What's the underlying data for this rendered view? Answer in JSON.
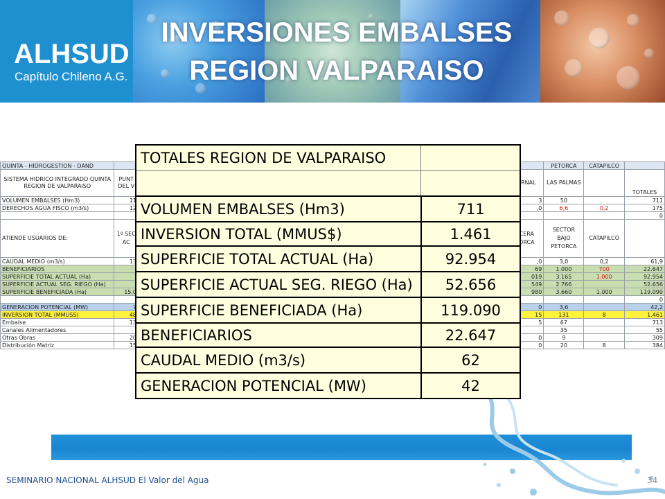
{
  "header": {
    "logo_main": "ALHSUD",
    "logo_sub": "Capítulo Chileno A.G.",
    "title_line1": "INVERSIONES EMBALSES",
    "title_line2": "REGION VALPARAISO"
  },
  "background_sheet": {
    "title": "QUINTA - HIDROGESTION - DAND",
    "col_petorca": "PETORCA",
    "col_catapilco": "CATAPILCO",
    "head_sistema": "SISTEMA HIDRICO INTEGRADO QUINTA REGION DE VALPARAISO",
    "head_punta": "PUNT DEL V",
    "head_ernal": "ERNAL",
    "head_las_palmas": "LAS PALMAS",
    "head_totales": "TOTALES",
    "rows": [
      {
        "label": "VOLUMEN EMBALSES (Hm3)",
        "c1": "11",
        "c3": "3",
        "c4": "50",
        "c5": "",
        "c6": "711"
      },
      {
        "label": "DERECHOS AGUA FISCO (m3/s)",
        "c1": "12",
        "c3": ",0",
        "c4": "6,6",
        "c5": "0,2",
        "c6": "175"
      },
      {
        "label": "",
        "c1": "",
        "c3": "",
        "c4": "",
        "c5": "",
        "c6": "0"
      }
    ],
    "atiende_label": "ATIENDE USUARIOS DE:",
    "atiende_c1": "1º SEC AC",
    "atiende_c3": "CERA ORCA",
    "atiende_c4": "SECTOR BAJO PETORCA",
    "atiende_c5": "CATAPILCO",
    "rows2": [
      {
        "label": "CAUDAL MEDIO (m3/s)",
        "c1": "13",
        "c3": ",0",
        "c4": "3,0",
        "c5": "0,2",
        "c6": "61,9",
        "style": ""
      },
      {
        "label": "BENEFICIARIOS",
        "c1": "",
        "c3": "69",
        "c4": "1.000",
        "c5": "700",
        "c6": "22.647",
        "style": "green"
      },
      {
        "label": "SUPERFICIE TOTAL ACTUAL (Ha)",
        "c1": "",
        "c3": "019",
        "c4": "3.165",
        "c5": "1.000",
        "c6": "92.954",
        "style": "green"
      },
      {
        "label": "SUPERFICIE ACTUAL SEG. RIEGO (Ha)",
        "c1": "",
        "c3": "549",
        "c4": "2.766",
        "c5": "",
        "c6": "52.656",
        "style": "green"
      },
      {
        "label": "SUPERFICIE BENEFICIADA (Ha)",
        "c1": "15.0",
        "c3": "980",
        "c4": "3.660",
        "c5": "1.000",
        "c6": "119.090",
        "style": "green"
      },
      {
        "label": "",
        "c1": "",
        "c3": "",
        "c4": "",
        "c5": "",
        "c6": "0",
        "style": ""
      },
      {
        "label": "GENERACION POTENCIAL (MW)",
        "c1": "7",
        "c3": "0",
        "c4": "3,6",
        "c5": "",
        "c6": "42,2",
        "style": "blue"
      },
      {
        "label": "INVERSION TOTAL (MMUSS)",
        "c1": "48",
        "c3": "15",
        "c4": "131",
        "c5": "8",
        "c6": "1.461",
        "style": "yellow"
      },
      {
        "label": "Embalse",
        "c1": "13",
        "c3": "5",
        "c4": "67",
        "c5": "",
        "c6": "713",
        "style": ""
      },
      {
        "label": "Canales Alimentadores",
        "c1": "",
        "c3": "",
        "c4": "35",
        "c5": "",
        "c6": "55",
        "style": ""
      },
      {
        "label": "Otras Obras",
        "c1": "20",
        "c3": "0",
        "c4": "9",
        "c5": "",
        "c6": "309",
        "style": ""
      },
      {
        "label": "Distribución Matriz",
        "c1": "15",
        "c3": "0",
        "c4": "20",
        "c5": "8",
        "c6": "384",
        "style": ""
      }
    ]
  },
  "summary": {
    "title": "TOTALES REGION DE VALPARAISO",
    "rows": [
      {
        "label": "VOLUMEN EMBALSES (Hm3)",
        "value": "711"
      },
      {
        "label": "INVERSION TOTAL (MMUS$)",
        "value": "1.461"
      },
      {
        "label": "SUPERFICIE TOTAL ACTUAL (Ha)",
        "value": "92.954"
      },
      {
        "label": "SUPERFICIE ACTUAL SEG. RIEGO (Ha)",
        "value": "52.656"
      },
      {
        "label": "SUPERFICIE BENEFICIADA (Ha)",
        "value": "119.090"
      },
      {
        "label": "BENEFICIARIOS",
        "value": "22.647"
      },
      {
        "label": "CAUDAL MEDIO (m3/s)",
        "value": "62"
      },
      {
        "label": "GENERACION POTENCIAL (MW)",
        "value": "42"
      }
    ]
  },
  "footer": {
    "text": "SEMINARIO NACIONAL ALHSUD El Valor del Agua",
    "page": "34"
  },
  "colors": {
    "brand_blue": "#1e90d0",
    "summary_bg": "#ffffe0",
    "footer_text": "#1f4e8f"
  }
}
